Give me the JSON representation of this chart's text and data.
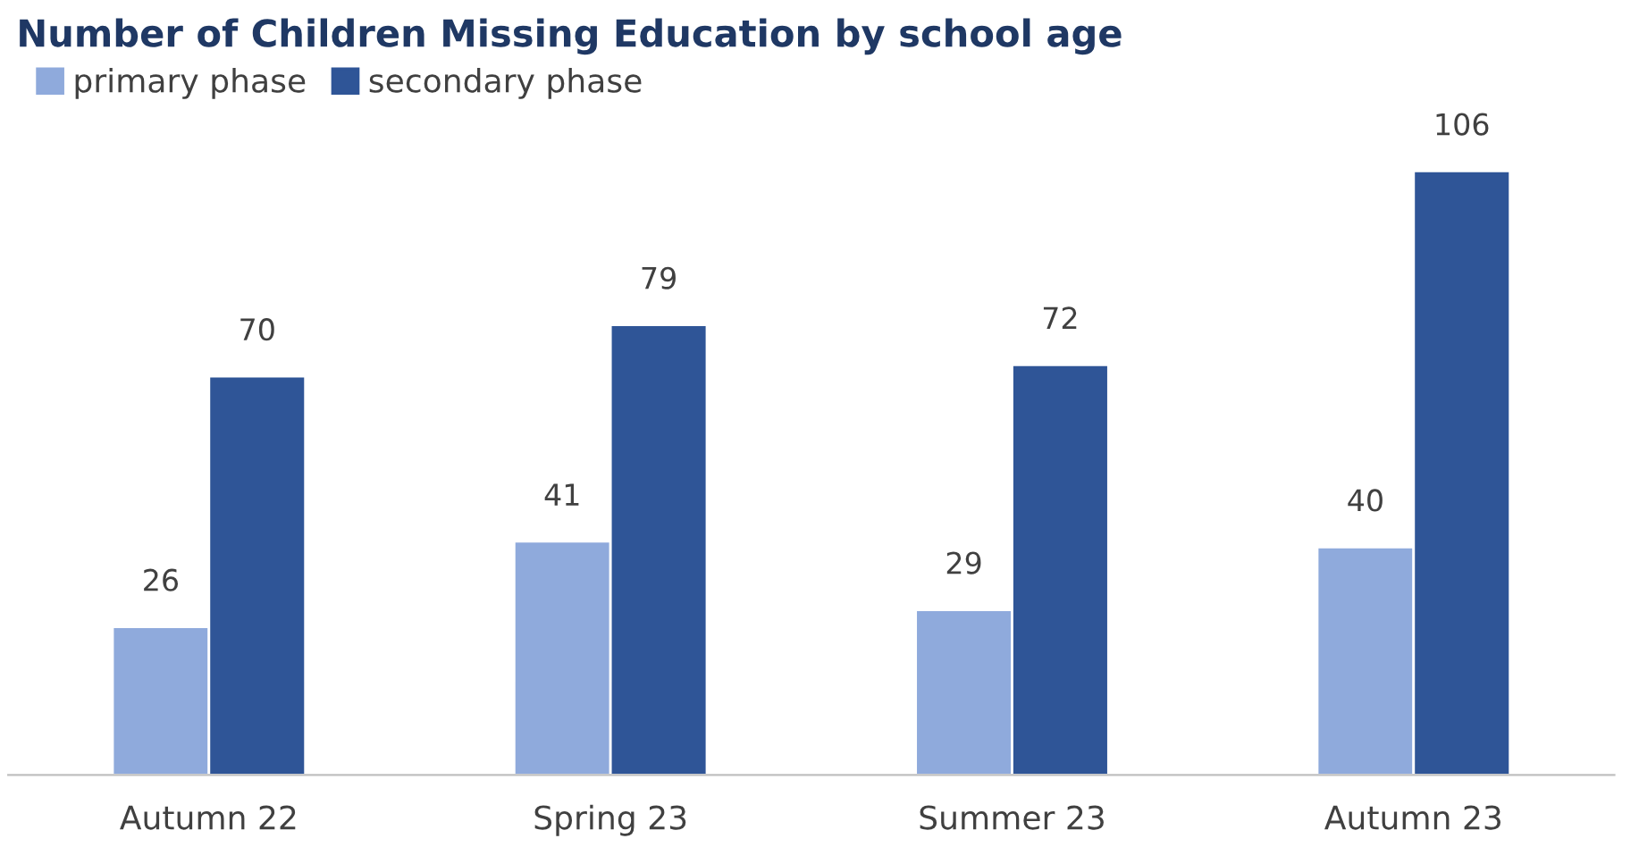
{
  "chart_data": {
    "type": "bar",
    "title": "Number of Children Missing Education by school age",
    "categories": [
      "Autumn 22",
      "Spring 23",
      "Summer 23",
      "Autumn 23"
    ],
    "series": [
      {
        "name": "primary phase",
        "color": "#8faadc",
        "values": [
          26,
          41,
          29,
          40
        ]
      },
      {
        "name": "secondary phase",
        "color": "#2f5597",
        "values": [
          70,
          79,
          72,
          106
        ]
      }
    ],
    "data_labels": true,
    "legend": "top left",
    "grid": false,
    "tick_labels": "x"
  }
}
